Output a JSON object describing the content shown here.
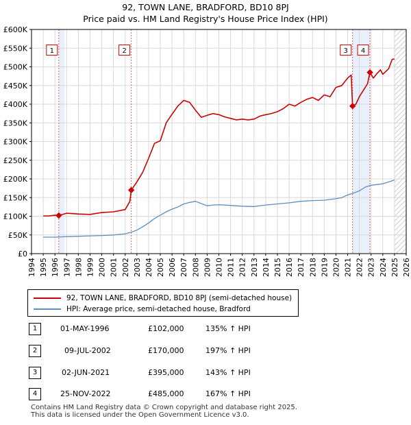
{
  "title_line1": "92, TOWN LANE, BRADFORD, BD10 8PJ",
  "title_line2": "Price paid vs. HM Land Registry's House Price Index (HPI)",
  "legend": {
    "property": "92, TOWN LANE, BRADFORD, BD10 8PJ (semi-detached house)",
    "hpi": "HPI: Average price, semi-detached house, Bradford"
  },
  "colors": {
    "property": "#cc0000",
    "hpi": "#5b8ec4",
    "highlight": "#e8f0fb",
    "marker_border": "#cc0000"
  },
  "sales": [
    {
      "num": "1",
      "date": "01-MAY-1996",
      "price": "£102,000",
      "hpi": "135% ↑ HPI"
    },
    {
      "num": "2",
      "date": "09-JUL-2002",
      "price": "£170,000",
      "hpi": "197% ↑ HPI"
    },
    {
      "num": "3",
      "date": "02-JUN-2021",
      "price": "£395,000",
      "hpi": "143% ↑ HPI"
    },
    {
      "num": "4",
      "date": "25-NOV-2022",
      "price": "£485,000",
      "hpi": "167% ↑ HPI"
    }
  ],
  "footer_line1": "Contains HM Land Registry data © Crown copyright and database right 2025.",
  "footer_line2": "This data is licensed under the Open Government Licence v3.0.",
  "chart_data": {
    "type": "line",
    "title": "92, TOWN LANE, BRADFORD, BD10 8PJ — Price paid vs. HM Land Registry's House Price Index (HPI)",
    "xlabel": "",
    "ylabel": "",
    "xlim": [
      1994,
      2026
    ],
    "ylim": [
      0,
      600000
    ],
    "x_ticks": [
      1994,
      1995,
      1996,
      1997,
      1998,
      1999,
      2000,
      2001,
      2002,
      2003,
      2004,
      2005,
      2006,
      2007,
      2008,
      2009,
      2010,
      2011,
      2012,
      2013,
      2014,
      2015,
      2016,
      2017,
      2018,
      2019,
      2020,
      2021,
      2022,
      2023,
      2024,
      2025,
      2026
    ],
    "y_ticks": [
      0,
      50000,
      100000,
      150000,
      200000,
      250000,
      300000,
      350000,
      400000,
      450000,
      500000,
      550000,
      600000
    ],
    "y_tick_labels": [
      "£0",
      "£50K",
      "£100K",
      "£150K",
      "£200K",
      "£250K",
      "£300K",
      "£350K",
      "£400K",
      "£450K",
      "£500K",
      "£550K",
      "£600K"
    ],
    "grid": true,
    "highlight_periods": [
      [
        1996.33,
        1996.83
      ],
      [
        2021.42,
        2022.9
      ]
    ],
    "hatched_region": [
      2025.0,
      2026.0
    ],
    "sale_markers": [
      {
        "label": "1",
        "x": 1996.33,
        "y": 102000
      },
      {
        "label": "2",
        "x": 2002.52,
        "y": 170000
      },
      {
        "label": "3",
        "x": 2021.42,
        "y": 395000
      },
      {
        "label": "4",
        "x": 2022.9,
        "y": 485000
      }
    ],
    "series": [
      {
        "name": "92, TOWN LANE, BRADFORD, BD10 8PJ (semi-detached house)",
        "x": [
          1995.0,
          1995.5,
          1996.0,
          1996.33,
          1997.0,
          1998.0,
          1999.0,
          2000.0,
          2001.0,
          2002.0,
          2002.4,
          2002.52,
          2003.0,
          2003.5,
          2004.0,
          2004.5,
          2005.0,
          2005.5,
          2006.0,
          2006.5,
          2007.0,
          2007.5,
          2008.0,
          2008.5,
          2009.0,
          2009.5,
          2010.0,
          2010.5,
          2011.0,
          2011.5,
          2012.0,
          2012.5,
          2013.0,
          2013.5,
          2014.0,
          2014.5,
          2015.0,
          2015.5,
          2016.0,
          2016.5,
          2017.0,
          2017.5,
          2018.0,
          2018.5,
          2019.0,
          2019.5,
          2020.0,
          2020.5,
          2021.0,
          2021.3,
          2021.42,
          2021.7,
          2022.0,
          2022.4,
          2022.7,
          2022.9,
          2023.2,
          2023.5,
          2023.8,
          2024.0,
          2024.5,
          2024.8,
          2025.0
        ],
        "y": [
          101000,
          101000,
          103000,
          102000,
          108000,
          106000,
          105000,
          110000,
          112000,
          118000,
          140000,
          170000,
          192000,
          218000,
          255000,
          295000,
          302000,
          350000,
          373000,
          395000,
          410000,
          405000,
          384000,
          365000,
          370000,
          375000,
          372000,
          366000,
          362000,
          358000,
          360000,
          358000,
          360000,
          368000,
          372000,
          375000,
          380000,
          388000,
          400000,
          395000,
          405000,
          413000,
          418000,
          410000,
          425000,
          420000,
          445000,
          450000,
          470000,
          478000,
          395000,
          400000,
          420000,
          440000,
          455000,
          485000,
          470000,
          482000,
          492000,
          480000,
          495000,
          520000,
          521000
        ]
      },
      {
        "name": "HPI: Average price, semi-detached house, Bradford",
        "x": [
          1995.0,
          1996.0,
          1997.0,
          1998.0,
          1999.0,
          2000.0,
          2001.0,
          2002.0,
          2002.5,
          2003.0,
          2003.5,
          2004.0,
          2004.5,
          2005.0,
          2005.5,
          2006.0,
          2006.5,
          2007.0,
          2007.5,
          2008.0,
          2008.5,
          2009.0,
          2009.5,
          2010.0,
          2011.0,
          2012.0,
          2013.0,
          2014.0,
          2015.0,
          2016.0,
          2017.0,
          2018.0,
          2019.0,
          2020.0,
          2020.5,
          2021.0,
          2021.5,
          2022.0,
          2022.5,
          2023.0,
          2023.5,
          2024.0,
          2024.5,
          2025.0
        ],
        "y": [
          44000,
          44000,
          45500,
          46500,
          47500,
          48500,
          50000,
          53000,
          57000,
          63000,
          72000,
          82000,
          94000,
          103000,
          112000,
          119000,
          125000,
          133000,
          137000,
          140000,
          134000,
          128000,
          130000,
          131000,
          129000,
          127000,
          126000,
          130000,
          133000,
          136000,
          140000,
          142000,
          143000,
          147000,
          150000,
          157000,
          162000,
          168000,
          178000,
          183000,
          185000,
          187000,
          192000,
          197000
        ]
      }
    ]
  }
}
